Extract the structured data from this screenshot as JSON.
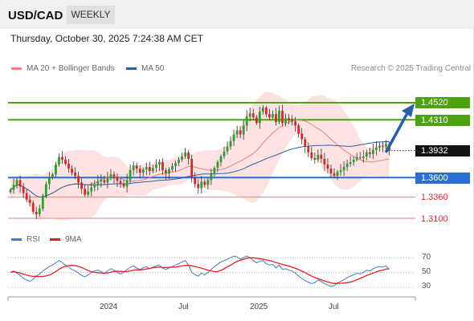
{
  "header": {
    "symbol": "USD/CAD",
    "timeframe": "WEEKLY"
  },
  "timestamp": "Thursday, October 30, 2025 7:24:38 AM CET",
  "legend": {
    "ma20_label": "MA 20 + Bollinger Bands",
    "ma50_label": "MA 50",
    "ma20_color": "#f08080",
    "ma50_color": "#2b5fa8",
    "credit": "Research © 2025 Trading Central"
  },
  "price_levels": [
    {
      "value": "1.4520",
      "color": "#4ca211",
      "kind": "resistance"
    },
    {
      "value": "1.4310",
      "color": "#4ca211",
      "kind": "resistance"
    },
    {
      "value": "1.3932",
      "color": "#111111",
      "kind": "last"
    },
    {
      "value": "1.3600",
      "color": "#2a6fd2",
      "kind": "pivot"
    },
    {
      "value": "1.3360",
      "color": "#d03030",
      "kind": "support"
    },
    {
      "value": "1.3100",
      "color": "#d03030",
      "kind": "support"
    }
  ],
  "x_axis": [
    "2024",
    "Jul",
    "2025",
    "Jul"
  ],
  "rsi": {
    "rsi_label": "RSI",
    "ma_label": "9MA",
    "rsi_color": "#4a78d0",
    "ma_color": "#e02020",
    "levels": [
      "70",
      "50",
      "30"
    ]
  },
  "chart_data": {
    "type": "candlestick",
    "symbol": "USD/CAD",
    "timeframe": "weekly",
    "closes": [
      1.345,
      1.351,
      1.357,
      1.349,
      1.341,
      1.333,
      1.329,
      1.318,
      1.315,
      1.322,
      1.338,
      1.352,
      1.36,
      1.364,
      1.376,
      1.385,
      1.382,
      1.377,
      1.371,
      1.366,
      1.362,
      1.354,
      1.346,
      1.339,
      1.343,
      1.348,
      1.352,
      1.355,
      1.357,
      1.354,
      1.359,
      1.364,
      1.361,
      1.356,
      1.352,
      1.349,
      1.357,
      1.369,
      1.375,
      1.371,
      1.366,
      1.37,
      1.373,
      1.368,
      1.372,
      1.376,
      1.379,
      1.369,
      1.365,
      1.37,
      1.374,
      1.378,
      1.382,
      1.386,
      1.391,
      1.383,
      1.36,
      1.352,
      1.347,
      1.355,
      1.351,
      1.357,
      1.364,
      1.372,
      1.379,
      1.386,
      1.392,
      1.398,
      1.405,
      1.413,
      1.418,
      1.413,
      1.424,
      1.435,
      1.439,
      1.434,
      1.427,
      1.441,
      1.446,
      1.438,
      1.434,
      1.438,
      1.428,
      1.442,
      1.427,
      1.433,
      1.431,
      1.429,
      1.424,
      1.414,
      1.407,
      1.398,
      1.391,
      1.384,
      1.382,
      1.388,
      1.383,
      1.376,
      1.371,
      1.365,
      1.362,
      1.367,
      1.369,
      1.373,
      1.377,
      1.379,
      1.382,
      1.385,
      1.384,
      1.386,
      1.391,
      1.389,
      1.394,
      1.397,
      1.399,
      1.398,
      1.401,
      1.393
    ],
    "rsi": [
      50,
      52,
      49,
      46,
      42,
      40,
      38,
      41,
      45,
      48,
      52,
      55,
      58,
      60,
      63,
      66,
      63,
      60,
      57,
      54,
      52,
      49,
      46,
      44,
      47,
      50,
      52,
      53,
      51,
      49,
      52,
      55,
      53,
      50,
      48,
      50,
      54,
      57,
      59,
      56,
      54,
      56,
      58,
      55,
      57,
      59,
      60,
      56,
      54,
      56,
      58,
      60,
      62,
      64,
      66,
      60,
      50,
      47,
      45,
      49,
      47,
      50,
      54,
      58,
      61,
      64,
      66,
      68,
      70,
      72,
      71,
      68,
      70,
      72,
      70,
      66,
      63,
      65,
      66,
      62,
      60,
      61,
      56,
      60,
      54,
      55,
      53,
      52,
      49,
      45,
      42,
      39,
      37,
      35,
      36,
      40,
      38,
      35,
      33,
      31,
      32,
      36,
      38,
      40,
      43,
      45,
      47,
      49,
      48,
      50,
      53,
      52,
      55,
      57,
      58,
      57,
      59,
      54
    ],
    "levels": [
      1.452,
      1.431,
      1.3932,
      1.36,
      1.336,
      1.31
    ],
    "indicators": [
      "MA 20 + Bollinger Bands",
      "MA 50",
      "RSI",
      "9MA"
    ],
    "x_ticks": [
      "2024",
      "Jul",
      "2025",
      "Jul"
    ],
    "rsi_levels": [
      70,
      50,
      30
    ]
  }
}
